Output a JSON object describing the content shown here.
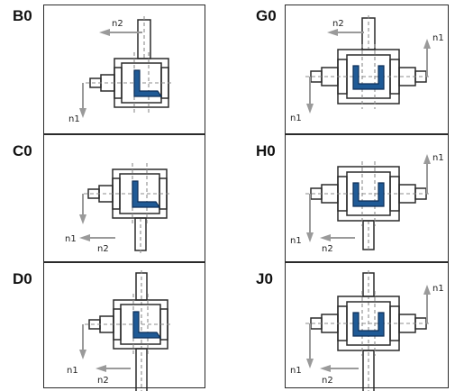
{
  "left_column": [
    {
      "code": "B0",
      "input_label": "n1",
      "output_label": "n2"
    },
    {
      "code": "C0",
      "input_label": "n1",
      "output_label": "n2"
    },
    {
      "code": "D0",
      "input_label": "n1",
      "output_label": "n2"
    }
  ],
  "right_column": [
    {
      "code": "G0",
      "input_label": "n1",
      "output_label": "n2",
      "second_output_label": "n1"
    },
    {
      "code": "H0",
      "input_label": "n1",
      "output_label": "n2",
      "second_output_label": "n1"
    },
    {
      "code": "J0",
      "input_label": "n1",
      "output_label": "n2",
      "second_output_label": "n1"
    }
  ],
  "colors": {
    "gear_fill": "#1f5a96",
    "outline": "#2b2b2b",
    "arrow": "#9a9a9a",
    "centerline": "#8c8c8c"
  }
}
